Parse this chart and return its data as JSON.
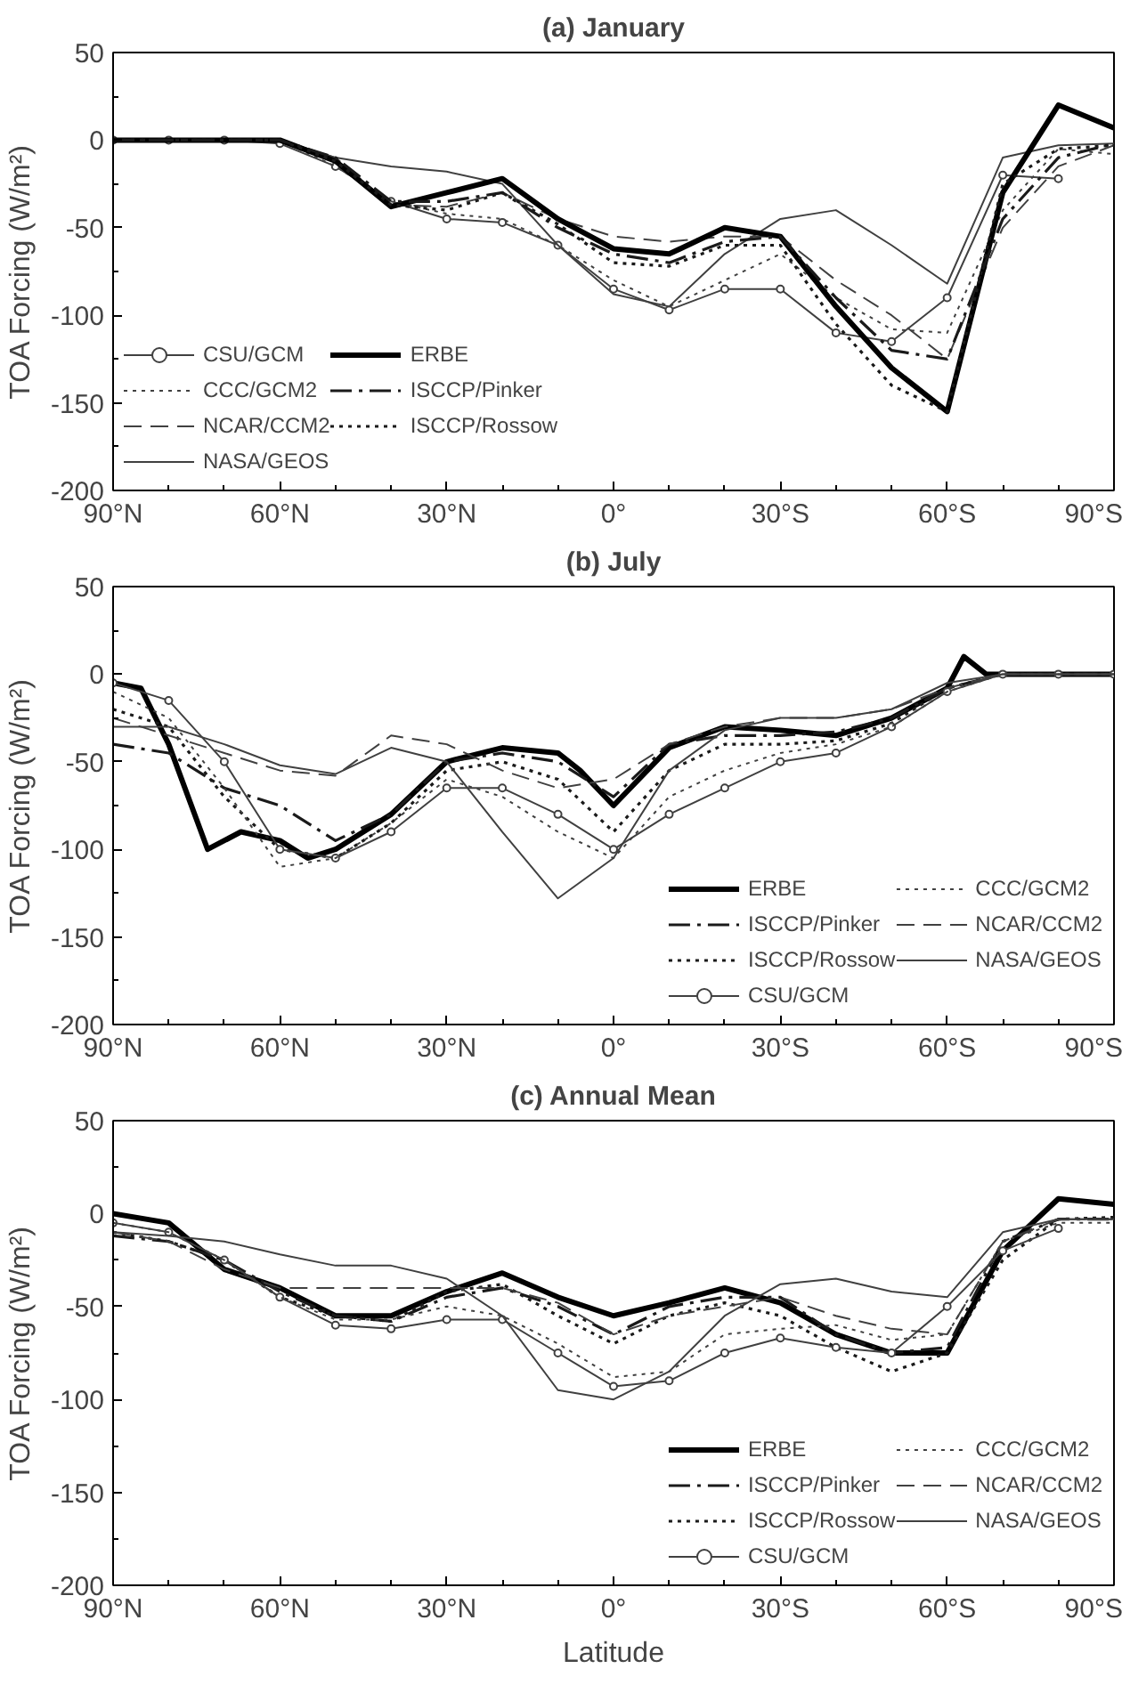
{
  "chart_data": [
    {
      "type": "line",
      "title": "(a) January",
      "ylabel": "TOA Forcing (W/m²)",
      "x": [
        90,
        80,
        70,
        60,
        50,
        40,
        30,
        20,
        10,
        0,
        -10,
        -20,
        -30,
        -40,
        -50,
        -60,
        -70,
        -80,
        -90
      ],
      "xlim": [
        90,
        -90
      ],
      "xticks": [
        {
          "value": 90,
          "label": "90°N"
        },
        {
          "value": 60,
          "label": "60°N"
        },
        {
          "value": 30,
          "label": "30°N"
        },
        {
          "value": 0,
          "label": "0°"
        },
        {
          "value": -30,
          "label": "30°S"
        },
        {
          "value": -60,
          "label": "60°S"
        },
        {
          "value": -90,
          "label": "90°S"
        }
      ],
      "ylim": [
        -200,
        50
      ],
      "yticks": [
        -200,
        -150,
        -100,
        -50,
        0,
        50
      ],
      "grid": false,
      "legend": "bottom left",
      "series": [
        {
          "name": "CSU/GCM",
          "color": "#404040",
          "line_style": "solid",
          "marker": "circle",
          "values": [
            0,
            0,
            0,
            -2,
            -15,
            -35,
            -45,
            -47,
            -60,
            -85,
            -97,
            -85,
            -85,
            -110,
            -115,
            -90,
            -20,
            -22,
            null
          ]
        },
        {
          "name": "CCC/GCM2",
          "color": "#404040",
          "line_style": "dotted",
          "marker": "none",
          "values": [
            0,
            0,
            0,
            0,
            -15,
            -35,
            -42,
            -45,
            -60,
            -80,
            -95,
            -80,
            -65,
            -90,
            -108,
            -110,
            -40,
            -5,
            -8
          ]
        },
        {
          "name": "NCAR/CCM2",
          "color": "#404040",
          "line_style": "dashed",
          "marker": "none",
          "values": [
            0,
            0,
            0,
            0,
            -10,
            -37,
            -38,
            -30,
            -45,
            -55,
            -58,
            -55,
            -55,
            -80,
            -100,
            -125,
            -50,
            -15,
            -3
          ]
        },
        {
          "name": "NASA/GEOS",
          "color": "#404040",
          "line_style": "solid",
          "marker": "none",
          "values": [
            0,
            0,
            0,
            0,
            -10,
            -15,
            -18,
            -25,
            -60,
            -88,
            -95,
            -65,
            -45,
            -40,
            -60,
            -82,
            -10,
            -3,
            -2
          ]
        },
        {
          "name": "ERBE",
          "color": "#000000",
          "line_style": "solid",
          "marker": "none",
          "values": [
            0,
            0,
            0,
            0,
            -12,
            -38,
            -30,
            -22,
            -45,
            -62,
            -65,
            -50,
            -55,
            -95,
            -130,
            -155,
            -30,
            20,
            7
          ]
        },
        {
          "name": "ISCCP/Pinker",
          "color": "#1a1a1a",
          "line_style": "dashdot",
          "marker": "none",
          "values": [
            0,
            0,
            0,
            0,
            -10,
            -35,
            -35,
            -30,
            -50,
            -65,
            -70,
            -58,
            -55,
            -90,
            -120,
            -125,
            -45,
            -10,
            -2
          ]
        },
        {
          "name": "ISCCP/Rossow",
          "color": "#1a1a1a",
          "line_style": "dotted",
          "marker": "none",
          "values": [
            0,
            0,
            0,
            0,
            -12,
            -37,
            -40,
            -30,
            -48,
            -70,
            -72,
            -60,
            -60,
            -105,
            -140,
            -155,
            -25,
            -5,
            -3
          ]
        }
      ]
    },
    {
      "type": "line",
      "title": "(b) July",
      "ylabel": "TOA Forcing (W/m²)",
      "x": [
        90,
        80,
        70,
        60,
        50,
        40,
        30,
        20,
        10,
        0,
        -10,
        -20,
        -30,
        -40,
        -50,
        -60,
        -70,
        -80,
        -90
      ],
      "xlim": [
        90,
        -90
      ],
      "xticks": [
        {
          "value": 90,
          "label": "90°N"
        },
        {
          "value": 60,
          "label": "60°N"
        },
        {
          "value": 30,
          "label": "30°N"
        },
        {
          "value": 0,
          "label": "0°"
        },
        {
          "value": -30,
          "label": "30°S"
        },
        {
          "value": -60,
          "label": "60°S"
        },
        {
          "value": -90,
          "label": "90°S"
        }
      ],
      "ylim": [
        -200,
        50
      ],
      "yticks": [
        -200,
        -150,
        -100,
        -50,
        0,
        50
      ],
      "grid": false,
      "legend": "bottom right",
      "series": [
        {
          "name": "ERBE",
          "color": "#000000",
          "line_style": "solid",
          "marker": "none",
          "x": [
            90,
            85,
            80,
            73,
            67,
            60,
            55,
            50,
            40,
            30,
            20,
            10,
            6,
            0,
            -10,
            -20,
            -30,
            -40,
            -50,
            -60,
            -63,
            -67,
            -70,
            -80,
            -90
          ],
          "values": [
            -5,
            -8,
            -40,
            -100,
            -90,
            -95,
            -105,
            -100,
            -80,
            -50,
            -42,
            -45,
            -55,
            -75,
            -42,
            -30,
            -32,
            -35,
            -25,
            -8,
            10,
            0,
            0,
            0,
            0
          ]
        },
        {
          "name": "ISCCP/Pinker",
          "color": "#1a1a1a",
          "line_style": "dashdot",
          "marker": "none",
          "values": [
            -40,
            -45,
            -65,
            -75,
            -95,
            -80,
            -50,
            -45,
            -50,
            -70,
            -40,
            -35,
            -35,
            -33,
            -25,
            -8,
            0,
            0,
            0
          ]
        },
        {
          "name": "ISCCP/Rossow",
          "color": "#1a1a1a",
          "line_style": "dotted",
          "marker": "none",
          "values": [
            -20,
            -30,
            -70,
            -100,
            -105,
            -85,
            -55,
            -50,
            -60,
            -90,
            -55,
            -40,
            -40,
            -38,
            -28,
            -8,
            0,
            0,
            0
          ]
        },
        {
          "name": "CSU/GCM",
          "color": "#404040",
          "line_style": "solid",
          "marker": "circle",
          "values": [
            -5,
            -15,
            -50,
            -100,
            -105,
            -90,
            -65,
            -65,
            -80,
            -100,
            -80,
            -65,
            -50,
            -45,
            -30,
            -10,
            0,
            0,
            0
          ]
        },
        {
          "name": "CCC/GCM2",
          "color": "#404040",
          "line_style": "dotted",
          "marker": "none",
          "values": [
            -10,
            -25,
            -65,
            -110,
            -105,
            -85,
            -60,
            -70,
            -90,
            -105,
            -70,
            -55,
            -45,
            -40,
            -30,
            -10,
            0,
            0,
            0
          ]
        },
        {
          "name": "NCAR/CCM2",
          "color": "#404040",
          "line_style": "dashed",
          "marker": "none",
          "values": [
            -25,
            -35,
            -45,
            -55,
            -58,
            -35,
            -40,
            -55,
            -65,
            -60,
            -40,
            -30,
            -25,
            -25,
            -20,
            -8,
            0,
            0,
            0
          ]
        },
        {
          "name": "NASA/GEOS",
          "color": "#404040",
          "line_style": "solid",
          "marker": "none",
          "values": [
            -30,
            -30,
            -40,
            -52,
            -57,
            -42,
            -50,
            -90,
            -128,
            -105,
            -55,
            -32,
            -25,
            -25,
            -20,
            -5,
            0,
            0,
            0
          ]
        }
      ]
    },
    {
      "type": "line",
      "title": "(c) Annual Mean",
      "xlabel": "Latitude",
      "ylabel": "TOA Forcing (W/m²)",
      "x": [
        90,
        80,
        70,
        60,
        50,
        40,
        30,
        20,
        10,
        0,
        -10,
        -20,
        -30,
        -40,
        -50,
        -60,
        -70,
        -80,
        -90
      ],
      "xlim": [
        90,
        -90
      ],
      "xticks": [
        {
          "value": 90,
          "label": "90°N"
        },
        {
          "value": 60,
          "label": "60°N"
        },
        {
          "value": 30,
          "label": "30°N"
        },
        {
          "value": 0,
          "label": "0°"
        },
        {
          "value": -30,
          "label": "30°S"
        },
        {
          "value": -60,
          "label": "60°S"
        },
        {
          "value": -90,
          "label": "90°S"
        }
      ],
      "ylim": [
        -200,
        50
      ],
      "yticks": [
        -200,
        -150,
        -100,
        -50,
        0,
        50
      ],
      "grid": false,
      "legend": "bottom right",
      "series": [
        {
          "name": "ERBE",
          "color": "#000000",
          "line_style": "solid",
          "marker": "none",
          "values": [
            0,
            -5,
            -30,
            -40,
            -55,
            -55,
            -42,
            -32,
            -45,
            -55,
            -48,
            -40,
            -48,
            -65,
            -75,
            -75,
            -20,
            8,
            5
          ]
        },
        {
          "name": "ISCCP/Pinker",
          "color": "#1a1a1a",
          "line_style": "dashdot",
          "marker": "none",
          "values": [
            -12,
            -15,
            -25,
            -42,
            -55,
            -58,
            -45,
            -40,
            -50,
            -65,
            -50,
            -45,
            -45,
            -65,
            -75,
            -72,
            -15,
            -3,
            -3
          ]
        },
        {
          "name": "ISCCP/Rossow",
          "color": "#1a1a1a",
          "line_style": "dotted",
          "marker": "none",
          "values": [
            -10,
            -15,
            -25,
            -45,
            -55,
            -58,
            -42,
            -38,
            -55,
            -70,
            -55,
            -48,
            -55,
            -72,
            -85,
            -75,
            -25,
            -3,
            -2
          ]
        },
        {
          "name": "CSU/GCM",
          "color": "#404040",
          "line_style": "solid",
          "marker": "circle",
          "values": [
            -5,
            -10,
            -25,
            -45,
            -60,
            -62,
            -57,
            -57,
            -75,
            -93,
            -90,
            -75,
            -67,
            -72,
            -75,
            -50,
            -20,
            -8,
            null
          ]
        },
        {
          "name": "CCC/GCM2",
          "color": "#404040",
          "line_style": "dotted",
          "marker": "none",
          "values": [
            -5,
            -10,
            -25,
            -45,
            -57,
            -57,
            -50,
            -55,
            -70,
            -88,
            -85,
            -65,
            -62,
            -60,
            -68,
            -65,
            -15,
            -5,
            -5
          ]
        },
        {
          "name": "NCAR/CCM2",
          "color": "#404040",
          "line_style": "dashed",
          "marker": "none",
          "values": [
            -10,
            -15,
            -30,
            -40,
            -40,
            -40,
            -40,
            -40,
            -48,
            -65,
            -55,
            -50,
            -45,
            -55,
            -62,
            -65,
            -15,
            -3,
            -3
          ]
        },
        {
          "name": "NASA/GEOS",
          "color": "#404040",
          "line_style": "solid",
          "marker": "none",
          "values": [
            -10,
            -12,
            -15,
            -22,
            -28,
            -28,
            -35,
            -55,
            -95,
            -100,
            -85,
            -55,
            -38,
            -35,
            -42,
            -45,
            -10,
            -3,
            -3
          ]
        }
      ]
    }
  ]
}
